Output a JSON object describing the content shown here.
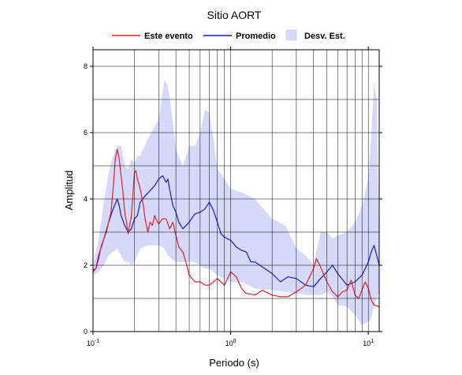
{
  "chart_data": {
    "type": "line",
    "title": "Sitio AORT",
    "xlabel": "Periodo (s)",
    "ylabel": "Amplitud",
    "xscale": "log",
    "xlim": [
      0.1,
      12
    ],
    "ylim": [
      0,
      8.5
    ],
    "x_ticks": [
      {
        "base": "10",
        "exp": "-1"
      },
      {
        "base": "10",
        "exp": "0"
      },
      {
        "base": "10",
        "exp": "1"
      }
    ],
    "y_ticks": [
      "0",
      "2",
      "4",
      "6",
      "8"
    ],
    "grid": true,
    "legend_placement": "top",
    "legend": [
      {
        "label": "Este evento",
        "color": "#e8202a",
        "kind": "line"
      },
      {
        "label": "Promedio",
        "color": "#1a1ad4",
        "kind": "line"
      },
      {
        "label": "Desv. Est.",
        "color": "#d6d9f7",
        "kind": "band"
      }
    ],
    "colors": {
      "event": "#e8202a",
      "mean": "#1a1ad4",
      "band": "#d6d9f7"
    },
    "series": [
      {
        "name": "Este evento",
        "x": [
          0.1,
          0.105,
          0.11,
          0.115,
          0.12,
          0.125,
          0.13,
          0.135,
          0.14,
          0.145,
          0.15,
          0.155,
          0.16,
          0.165,
          0.17,
          0.175,
          0.18,
          0.19,
          0.2,
          0.205,
          0.21,
          0.22,
          0.23,
          0.24,
          0.25,
          0.26,
          0.27,
          0.28,
          0.29,
          0.3,
          0.32,
          0.34,
          0.36,
          0.38,
          0.4,
          0.42,
          0.45,
          0.48,
          0.5,
          0.55,
          0.6,
          0.65,
          0.7,
          0.75,
          0.8,
          0.9,
          1.0,
          1.1,
          1.2,
          1.3,
          1.5,
          1.7,
          2.0,
          2.3,
          2.6,
          3.0,
          3.5,
          4.0,
          4.2,
          4.5,
          5.0,
          5.5,
          6.0,
          6.5,
          7.0,
          7.5,
          8.0,
          8.5,
          9.0,
          9.5,
          10.0,
          10.5,
          11.0,
          12.0
        ],
        "values": [
          1.8,
          1.9,
          2.2,
          2.6,
          2.8,
          3.0,
          3.3,
          3.6,
          4.3,
          5.2,
          5.5,
          5.2,
          4.7,
          4.2,
          3.6,
          3.3,
          2.95,
          3.5,
          4.8,
          4.85,
          4.6,
          4.3,
          3.9,
          3.35,
          3.0,
          3.3,
          3.2,
          3.5,
          3.35,
          3.25,
          3.4,
          3.4,
          3.1,
          3.3,
          2.9,
          2.55,
          2.4,
          2.0,
          1.7,
          1.5,
          1.5,
          1.4,
          1.4,
          1.5,
          1.6,
          1.4,
          1.8,
          1.65,
          1.3,
          1.15,
          1.1,
          1.25,
          1.1,
          1.05,
          1.05,
          1.2,
          1.4,
          1.9,
          2.2,
          1.95,
          1.5,
          1.2,
          1.05,
          1.2,
          1.25,
          1.55,
          1.1,
          1.0,
          1.25,
          1.5,
          1.3,
          0.95,
          0.8,
          0.75
        ]
      },
      {
        "name": "Promedio",
        "x": [
          0.1,
          0.105,
          0.11,
          0.12,
          0.13,
          0.14,
          0.15,
          0.155,
          0.16,
          0.17,
          0.18,
          0.19,
          0.2,
          0.21,
          0.22,
          0.24,
          0.26,
          0.28,
          0.3,
          0.32,
          0.34,
          0.35,
          0.36,
          0.38,
          0.4,
          0.42,
          0.45,
          0.5,
          0.55,
          0.6,
          0.65,
          0.7,
          0.75,
          0.8,
          0.85,
          0.9,
          1.0,
          1.1,
          1.2,
          1.3,
          1.4,
          1.5,
          1.7,
          2.0,
          2.3,
          2.6,
          3.0,
          3.5,
          4.0,
          4.5,
          5.0,
          5.5,
          6.0,
          7.0,
          8.0,
          9.0,
          10.0,
          10.5,
          11.0,
          11.5,
          12.0
        ],
        "values": [
          1.85,
          1.9,
          2.3,
          2.8,
          3.3,
          3.7,
          4.0,
          3.8,
          3.5,
          3.2,
          3.0,
          3.1,
          3.4,
          3.5,
          3.9,
          4.1,
          4.25,
          4.4,
          4.6,
          4.7,
          4.5,
          4.6,
          4.3,
          3.8,
          3.6,
          3.3,
          3.1,
          3.3,
          3.55,
          3.6,
          3.7,
          3.9,
          3.65,
          3.3,
          2.95,
          2.85,
          2.75,
          2.55,
          2.45,
          2.4,
          2.1,
          2.1,
          1.95,
          1.75,
          1.5,
          1.65,
          1.6,
          1.4,
          1.35,
          1.6,
          1.8,
          2.0,
          1.75,
          1.4,
          1.5,
          1.7,
          2.1,
          2.4,
          2.6,
          2.3,
          2.0
        ]
      },
      {
        "name": "Desv. Est.",
        "x": [
          0.1,
          0.11,
          0.12,
          0.13,
          0.14,
          0.15,
          0.16,
          0.17,
          0.18,
          0.19,
          0.2,
          0.21,
          0.22,
          0.25,
          0.3,
          0.33,
          0.35,
          0.37,
          0.4,
          0.45,
          0.5,
          0.55,
          0.6,
          0.65,
          0.7,
          0.75,
          0.8,
          0.9,
          1.0,
          1.2,
          1.5,
          2.0,
          2.5,
          3.0,
          3.5,
          4.0,
          4.5,
          5.0,
          5.5,
          6.0,
          7.0,
          8.0,
          9.0,
          10.0,
          10.5,
          11.0,
          11.5,
          12.0
        ],
        "upper": [
          2.0,
          2.8,
          3.9,
          4.8,
          5.3,
          5.6,
          5.6,
          5.0,
          4.9,
          5.2,
          5.1,
          5.3,
          5.3,
          5.8,
          6.4,
          7.6,
          7.4,
          6.7,
          5.5,
          5.0,
          5.6,
          5.6,
          6.0,
          6.7,
          6.6,
          5.8,
          4.9,
          4.6,
          4.3,
          4.2,
          4.0,
          3.4,
          3.2,
          2.5,
          2.3,
          2.0,
          3.0,
          3.0,
          2.8,
          2.9,
          3.0,
          3.3,
          3.8,
          4.6,
          5.9,
          7.5,
          7.0,
          2.5
        ],
        "lower": [
          1.7,
          1.8,
          2.0,
          2.3,
          2.4,
          2.5,
          2.3,
          2.1,
          2.1,
          2.0,
          2.1,
          2.3,
          2.5,
          2.6,
          2.6,
          2.5,
          2.3,
          2.2,
          2.1,
          2.1,
          2.1,
          2.1,
          2.0,
          1.9,
          1.9,
          1.8,
          1.7,
          1.6,
          1.5,
          1.5,
          1.3,
          1.25,
          1.2,
          1.15,
          1.1,
          1.1,
          1.1,
          1.2,
          1.05,
          0.8,
          0.75,
          0.5,
          0.2,
          0.3,
          0.4,
          0.8,
          1.0,
          1.2
        ]
      }
    ]
  }
}
